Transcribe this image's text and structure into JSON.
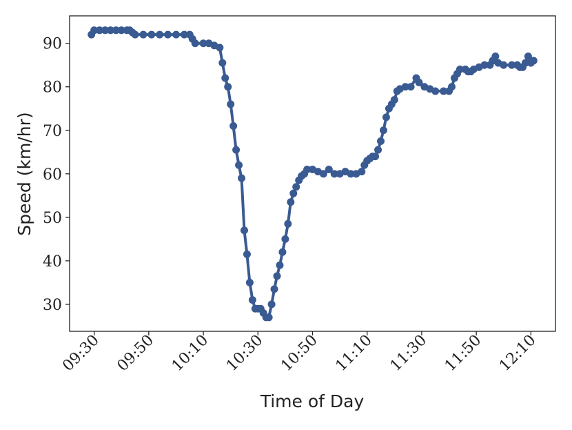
{
  "chart_data": {
    "type": "line",
    "x_label": "Time of Day",
    "y_label": "Speed (km/hr)",
    "x": [
      "09:29",
      "09:30",
      "09:32",
      "09:34",
      "09:36",
      "09:38",
      "09:40",
      "09:42",
      "09:43",
      "09:44",
      "09:45",
      "09:48",
      "09:51",
      "09:54",
      "09:57",
      "10:00",
      "10:03",
      "10:05",
      "10:06",
      "10:07",
      "10:10",
      "10:12",
      "10:14",
      "10:16",
      "10:17",
      "10:18",
      "10:19",
      "10:20",
      "10:21",
      "10:22",
      "10:23",
      "10:24",
      "10:25",
      "10:26",
      "10:27",
      "10:28",
      "10:29",
      "10:30",
      "10:31",
      "10:32",
      "10:33",
      "10:34",
      "10:35",
      "10:36",
      "10:37",
      "10:38",
      "10:39",
      "10:40",
      "10:41",
      "10:42",
      "10:43",
      "10:44",
      "10:45",
      "10:46",
      "10:47",
      "10:48",
      "10:50",
      "10:52",
      "10:54",
      "10:56",
      "10:58",
      "11:00",
      "11:02",
      "11:04",
      "11:06",
      "11:08",
      "11:09",
      "11:10",
      "11:11",
      "11:12",
      "11:13",
      "11:14",
      "11:15",
      "11:16",
      "11:17",
      "11:18",
      "11:19",
      "11:20",
      "11:21",
      "11:22",
      "11:24",
      "11:26",
      "11:28",
      "11:29",
      "11:31",
      "11:33",
      "11:35",
      "11:38",
      "11:40",
      "11:41",
      "11:42",
      "11:43",
      "11:44",
      "11:46",
      "11:47",
      "11:48",
      "11:49",
      "11:51",
      "11:53",
      "11:55",
      "11:56",
      "11:57",
      "11:58",
      "12:00",
      "12:03",
      "12:05",
      "12:06",
      "12:07",
      "12:08",
      "12:09",
      "12:10",
      "12:11"
    ],
    "series": [
      {
        "name": "Speed",
        "color": "#3a5a92",
        "values": [
          92,
          93,
          93,
          93,
          93,
          93,
          93,
          93,
          93,
          92.5,
          92,
          92,
          92,
          92,
          92,
          92,
          92,
          92,
          91,
          90,
          90,
          90,
          89.5,
          89,
          85.5,
          82,
          80,
          76,
          71,
          65.5,
          62,
          59,
          47,
          41.5,
          35,
          31,
          29,
          29,
          29,
          28,
          27,
          27,
          30,
          33.5,
          36.5,
          39,
          42,
          45,
          48.5,
          53.5,
          55.5,
          57,
          58.5,
          59.5,
          60,
          61,
          61,
          60.5,
          60,
          61,
          60,
          60,
          60.5,
          60,
          60,
          60.5,
          62,
          63,
          63.5,
          64,
          64,
          65.5,
          67.5,
          70,
          73,
          75,
          76,
          77,
          79,
          79.5,
          80,
          80,
          82,
          81,
          80,
          79.5,
          79,
          79,
          79,
          80,
          82,
          83,
          84,
          84,
          83.5,
          83.5,
          84,
          84.5,
          85,
          85,
          86,
          87,
          85.5,
          85,
          85,
          85,
          84.5,
          84.5,
          85.5,
          87,
          85.5,
          86
        ]
      }
    ],
    "xlim": [
      "09:21",
      "12:19"
    ],
    "xticks": [
      "09:30",
      "09:50",
      "10:10",
      "10:30",
      "10:50",
      "11:10",
      "11:30",
      "11:50",
      "12:10"
    ],
    "ylim": [
      23.8,
      96.3
    ],
    "yticks": [
      30,
      40,
      50,
      60,
      70,
      80,
      90
    ],
    "grid": false
  }
}
